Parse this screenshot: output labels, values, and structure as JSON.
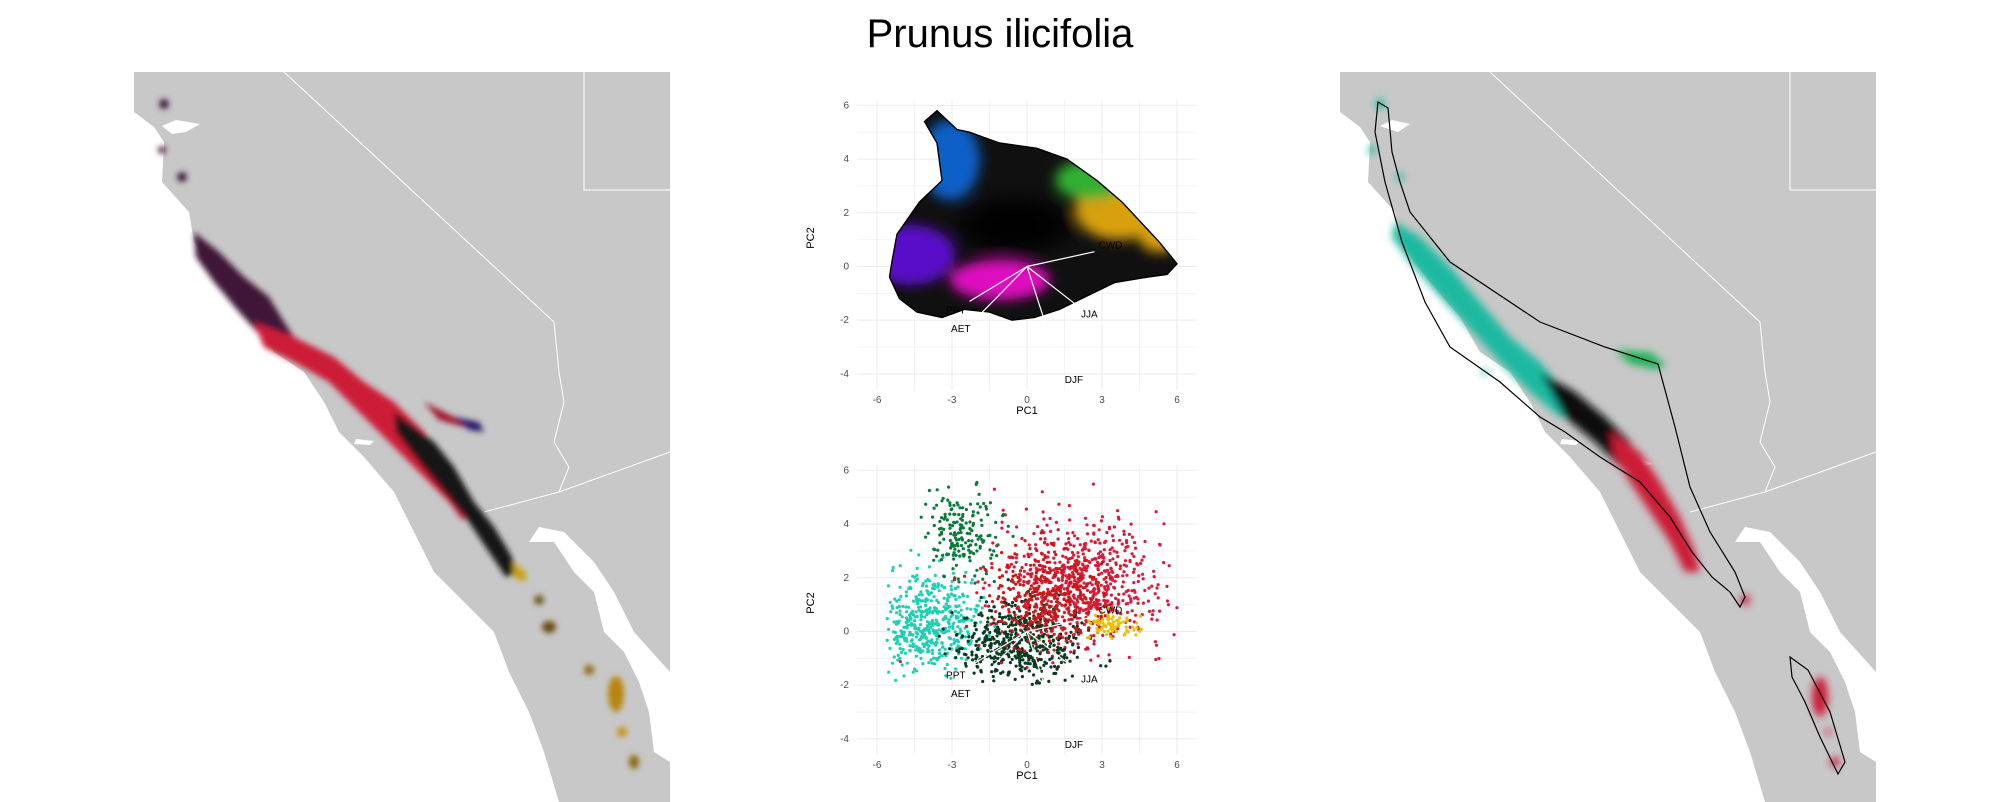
{
  "title": "Prunus ilicifolia",
  "colors": {
    "land": "#c8c8c8",
    "border": "#ffffff",
    "grid": "#ebebeb",
    "hull": "#000000",
    "vector": "#ffffff"
  },
  "chart_data": [
    {
      "panel": "left-map",
      "type": "map",
      "description_colors": [
        "#3a1a3a",
        "#d81b45",
        "#1a1a1a",
        "#3a7a2a",
        "#a0781a",
        "#d4a017"
      ]
    },
    {
      "panel": "pca-top",
      "type": "scatter",
      "xlabel": "PC1",
      "ylabel": "PC2",
      "xlim": [
        -6.8,
        6.8
      ],
      "ylim": [
        -4.6,
        6.2
      ],
      "xticks": [
        -6,
        -3,
        0,
        3,
        6
      ],
      "yticks": [
        -4,
        -2,
        0,
        2,
        4,
        6
      ],
      "grid": true,
      "hull": [
        [
          -5.4,
          0.2
        ],
        [
          -5.2,
          1.2
        ],
        [
          -4.3,
          2.4
        ],
        [
          -3.4,
          3.2
        ],
        [
          -3.6,
          4.6
        ],
        [
          -4.1,
          5.4
        ],
        [
          -3.6,
          5.8
        ],
        [
          -2.8,
          5.1
        ],
        [
          -2.3,
          5.0
        ],
        [
          -1.7,
          4.8
        ],
        [
          -1.1,
          4.6
        ],
        [
          0.4,
          4.4
        ],
        [
          1.6,
          4.0
        ],
        [
          2.8,
          3.2
        ],
        [
          3.8,
          2.4
        ],
        [
          4.6,
          1.6
        ],
        [
          5.3,
          0.9
        ],
        [
          6.0,
          0.1
        ],
        [
          5.6,
          -0.3
        ],
        [
          4.8,
          -0.4
        ],
        [
          3.5,
          -0.6
        ],
        [
          2.4,
          -1.1
        ],
        [
          1.3,
          -1.6
        ],
        [
          0.3,
          -1.9
        ],
        [
          -0.6,
          -2.0
        ],
        [
          -1.5,
          -1.7
        ],
        [
          -2.5,
          -1.6
        ],
        [
          -3.4,
          -1.9
        ],
        [
          -4.4,
          -1.7
        ],
        [
          -5.1,
          -1.2
        ],
        [
          -5.5,
          -0.4
        ]
      ],
      "vectors": [
        {
          "name": "CWD",
          "x": 2.7,
          "y": 0.55
        },
        {
          "name": "PPT",
          "x": -2.3,
          "y": -1.3
        },
        {
          "name": "AET",
          "x": -2.1,
          "y": -2.0
        },
        {
          "name": "JJA",
          "x": 2.0,
          "y": -1.45
        },
        {
          "name": "DJF",
          "x": 1.35,
          "y": -3.9
        }
      ]
    },
    {
      "panel": "pca-bottom",
      "type": "scatter",
      "xlabel": "PC1",
      "ylabel": "PC2",
      "xlim": [
        -6.8,
        6.8
      ],
      "ylim": [
        -4.6,
        6.2
      ],
      "xticks": [
        -6,
        -3,
        0,
        3,
        6
      ],
      "yticks": [
        -4,
        -2,
        0,
        2,
        4,
        6
      ],
      "grid": true,
      "clusters": [
        {
          "color": "#d81b3a",
          "cx": 2.2,
          "cy": 1.8
        },
        {
          "color": "#1fcfb4",
          "cx": -4.0,
          "cy": 0.3
        },
        {
          "color": "#0a7a3a",
          "cx": -2.6,
          "cy": 3.8
        },
        {
          "color": "#0b3a22",
          "cx": -0.2,
          "cy": -0.4
        },
        {
          "color": "#c81818",
          "cx": 0.6,
          "cy": 1.2
        },
        {
          "color": "#e8c200",
          "cx": 3.4,
          "cy": 0.2
        }
      ],
      "vectors": [
        {
          "name": "CWD",
          "x": 2.7,
          "y": 0.55
        },
        {
          "name": "PPT",
          "x": -2.3,
          "y": -1.3
        },
        {
          "name": "AET",
          "x": -2.1,
          "y": -2.0
        },
        {
          "name": "JJA",
          "x": 2.0,
          "y": -1.45
        },
        {
          "name": "DJF",
          "x": 1.35,
          "y": -3.9
        }
      ]
    },
    {
      "panel": "right-map",
      "type": "map",
      "description_colors": [
        "#1ab9a0",
        "#0f0f0f",
        "#cc1a38",
        "#22b45a"
      ]
    }
  ]
}
